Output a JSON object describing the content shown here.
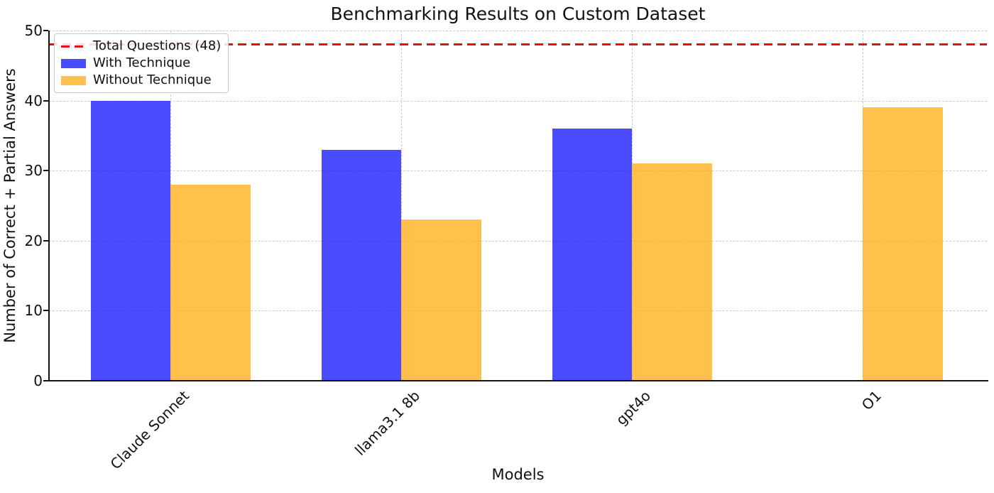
{
  "chart_data": {
    "type": "bar",
    "title": "Benchmarking Results on Custom Dataset",
    "xlabel": "Models",
    "ylabel": "Number of Correct + Partial Answers",
    "categories": [
      "Claude Sonnet",
      "llama3.1 8b",
      "gpt4o",
      "O1"
    ],
    "series": [
      {
        "name": "With Technique",
        "color": "#0000ff",
        "opacity": 0.7,
        "values": [
          40,
          33,
          36,
          0
        ]
      },
      {
        "name": "Without Technique",
        "color": "#ffa500",
        "opacity": 0.7,
        "values": [
          28,
          23,
          31,
          39
        ]
      }
    ],
    "reference_line": {
      "label": "Total Questions (48)",
      "value": 48,
      "color": "#e41414",
      "style": "dashed"
    },
    "ylim": [
      0,
      50
    ],
    "yticks": [
      0,
      10,
      20,
      30,
      40,
      50
    ],
    "grid": true,
    "legend_position": "upper left"
  }
}
